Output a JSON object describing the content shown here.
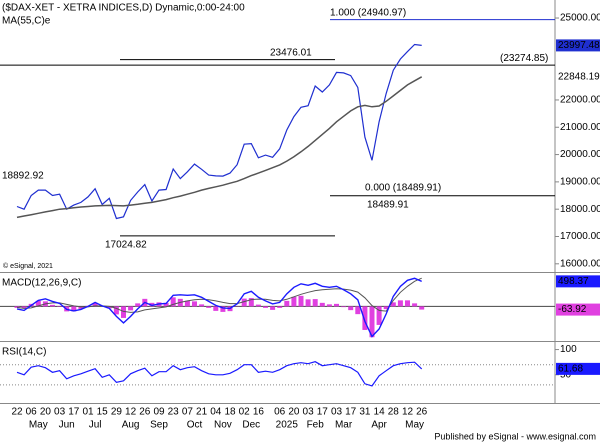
{
  "chart_data": [
    {
      "type": "line",
      "title": "($DAX-XET - XETRA INDICES,D) Dynamic,0:00-24:00",
      "subtitle": "MA(55,C)e",
      "copyright": "© eSignal, 2021",
      "categories": [
        "22",
        null,
        "06",
        null,
        "20",
        null,
        "03",
        null,
        "17",
        null,
        "01",
        null,
        "15",
        null,
        "29",
        null,
        "12",
        null,
        "26",
        null,
        "09",
        null,
        "23",
        null,
        "07",
        null,
        "21",
        null,
        "04",
        null,
        "18",
        null,
        "02",
        null,
        "16",
        null,
        null,
        "06",
        null,
        "20",
        null,
        "03",
        null,
        "17",
        null,
        "03",
        null,
        "17",
        null,
        "31",
        null,
        "14",
        null,
        "28",
        null,
        "12",
        null,
        "26"
      ],
      "month_labels": [
        null,
        null,
        null,
        "May",
        null,
        null,
        null,
        "Jun",
        null,
        null,
        null,
        "Jul",
        null,
        null,
        null,
        null,
        "Aug",
        null,
        null,
        null,
        "Sep",
        null,
        null,
        null,
        null,
        "Oct",
        null,
        null,
        null,
        "Nov",
        null,
        null,
        null,
        "Dec",
        null,
        null,
        null,
        null,
        "2025",
        null,
        null,
        null,
        "Feb",
        null,
        null,
        null,
        "Mar",
        null,
        null,
        null,
        null,
        "Apr",
        null,
        null,
        null,
        null,
        "May",
        null
      ],
      "series": [
        {
          "name": "$DAX-XET",
          "color": "#1f2fd0",
          "values": [
            18100,
            18000,
            18500,
            18700,
            18700,
            18500,
            18550,
            18000,
            18150,
            18250,
            18450,
            18750,
            18170,
            18400,
            17660,
            17720,
            18320,
            18630,
            18900,
            18300,
            18700,
            18720,
            19470,
            19120,
            19370,
            19650,
            19460,
            19250,
            19220,
            19210,
            19320,
            19630,
            20380,
            20400,
            19880,
            19980,
            19900,
            20210,
            20900,
            21390,
            21730,
            21790,
            22510,
            22290,
            22550,
            23010,
            22990,
            22890,
            22460,
            20640,
            19790,
            21200,
            22240,
            23090,
            23500,
            23770,
            24030,
            23997.48
          ]
        },
        {
          "name": "MA(55,C)e",
          "color": "#555555",
          "values": [
            17700,
            17750,
            17800,
            17850,
            17900,
            17950,
            18000,
            18020,
            18050,
            18080,
            18100,
            18120,
            18130,
            18140,
            18130,
            18120,
            18150,
            18180,
            18220,
            18250,
            18300,
            18350,
            18420,
            18480,
            18550,
            18620,
            18700,
            18760,
            18820,
            18880,
            18950,
            19020,
            19120,
            19230,
            19320,
            19420,
            19520,
            19620,
            19760,
            19920,
            20100,
            20300,
            20520,
            20740,
            20960,
            21200,
            21400,
            21600,
            21750,
            21800,
            21750,
            21780,
            21950,
            22150,
            22350,
            22550,
            22700,
            22848.19
          ]
        }
      ],
      "ylim": [
        15700,
        25660
      ],
      "yticks": [
        {
          "value": 16000,
          "label": "16000.00"
        },
        {
          "value": 17000,
          "label": "17000.00"
        },
        {
          "value": 18000,
          "label": "18000.00"
        },
        {
          "value": 19000,
          "label": "19000.00"
        },
        {
          "value": 20000,
          "label": "20000.00"
        },
        {
          "value": 21000,
          "label": "21000.00"
        },
        {
          "value": 22000,
          "label": "22000.00"
        },
        {
          "value": 25000,
          "label": "25000.00"
        }
      ],
      "annotations": [
        {
          "value": 24940.97,
          "label": "1.000 (24940.97)"
        },
        {
          "value": 23476.01,
          "label": "23476.01"
        },
        {
          "value": 23274.85,
          "label": "(23274.85)"
        },
        {
          "value": 18892.92,
          "label": "18892.92"
        },
        {
          "value": 18489.91,
          "label": "0.000 (18489.91)"
        },
        {
          "value": 18489.91,
          "label": "18489.91"
        },
        {
          "value": 17024.82,
          "label": "17024.82"
        }
      ]
    },
    {
      "type": "macd",
      "title": "MACD(12,26,9,C)",
      "ylim": [
        -690,
        665
      ],
      "series": [
        {
          "name": "MACD",
          "color": "#1a1aff",
          "values": [
            -50,
            -80,
            20,
            120,
            150,
            100,
            60,
            -60,
            -90,
            -60,
            0,
            80,
            10,
            -40,
            -200,
            -330,
            -200,
            -50,
            80,
            20,
            50,
            60,
            220,
            230,
            220,
            230,
            180,
            100,
            20,
            -30,
            -40,
            50,
            250,
            300,
            180,
            110,
            50,
            80,
            250,
            380,
            450,
            420,
            460,
            400,
            380,
            400,
            330,
            250,
            130,
            -300,
            -600,
            -450,
            -150,
            200,
            400,
            520,
            560,
            498.37
          ]
        },
        {
          "name": "Signal",
          "color": "#555555",
          "values": [
            -20,
            -40,
            -30,
            10,
            50,
            70,
            70,
            40,
            10,
            -10,
            -10,
            10,
            10,
            0,
            -40,
            -100,
            -120,
            -110,
            -70,
            -50,
            -30,
            -10,
            40,
            80,
            110,
            130,
            140,
            130,
            110,
            80,
            55,
            55,
            95,
            135,
            145,
            140,
            120,
            110,
            140,
            190,
            240,
            280,
            315,
            330,
            340,
            350,
            345,
            325,
            285,
            170,
            15,
            -80,
            -95,
            120,
            280,
            400,
            500,
            562.29
          ]
        },
        {
          "name": "Histogram",
          "color": "#e040e0",
          "values": [
            -30,
            -40,
            50,
            110,
            100,
            30,
            -10,
            -100,
            -100,
            -50,
            10,
            70,
            0,
            -40,
            -160,
            -230,
            -80,
            60,
            150,
            70,
            80,
            70,
            180,
            150,
            110,
            100,
            40,
            -30,
            -90,
            -110,
            -95,
            -5,
            155,
            165,
            35,
            -30,
            -70,
            -30,
            110,
            190,
            210,
            140,
            145,
            70,
            40,
            50,
            -15,
            -75,
            -155,
            -470,
            -615,
            -370,
            -55,
            80,
            120,
            120,
            60,
            -63.92
          ]
        }
      ]
    },
    {
      "type": "rsi",
      "title": "RSI(14,C)",
      "ylim": [
        -4,
        115
      ],
      "yticks": [
        50,
        100
      ],
      "levels": [
        70,
        30
      ],
      "series": [
        {
          "name": "RSI",
          "color": "#1a1aff",
          "values": [
            55,
            50,
            65,
            68,
            64,
            55,
            58,
            42,
            48,
            52,
            57,
            62,
            45,
            50,
            35,
            38,
            52,
            58,
            63,
            48,
            56,
            56,
            68,
            60,
            64,
            66,
            58,
            52,
            50,
            50,
            53,
            60,
            70,
            70,
            55,
            57,
            55,
            60,
            68,
            72,
            74,
            72,
            76,
            68,
            70,
            72,
            68,
            64,
            55,
            32,
            28,
            48,
            58,
            68,
            72,
            74,
            75,
            61.68
          ]
        }
      ]
    }
  ],
  "footer": "Published by eSignal - www.esignal.com"
}
